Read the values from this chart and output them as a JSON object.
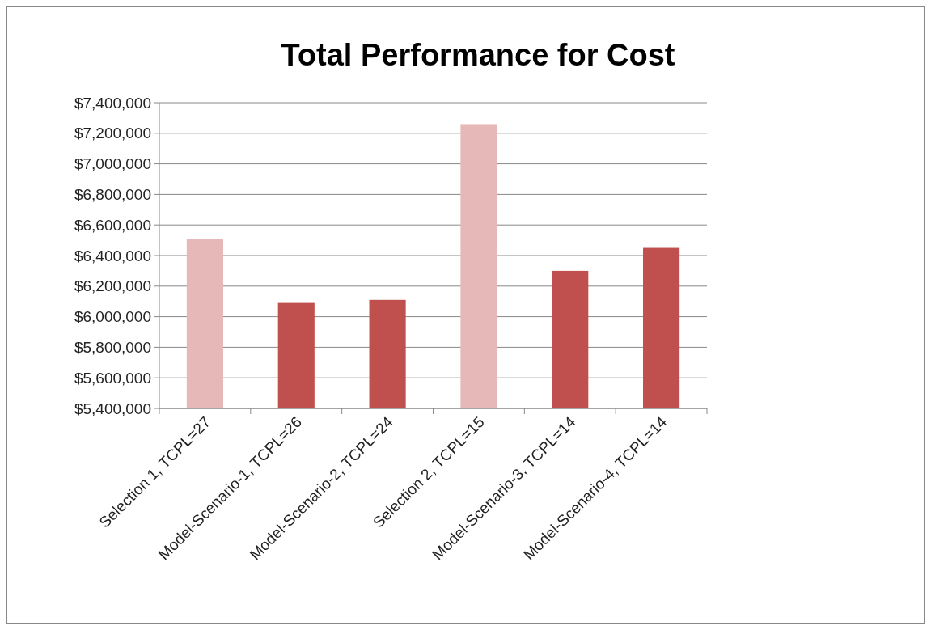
{
  "chart_data": {
    "type": "bar",
    "title": "Total Performance for Cost",
    "categories": [
      "Selection 1, TCPL=27",
      "Model-Scenario-1, TCPL=26",
      "Model-Scenario-2, TCPL=24",
      "Selection 2, TCPL=15",
      "Model-Scenario-3, TCPL=14",
      "Model-Scenario-4, TCPL=14"
    ],
    "values": [
      6510000,
      6090000,
      6110000,
      7260000,
      6300000,
      6450000
    ],
    "colors": [
      "#e6b9b8",
      "#c0504d",
      "#c0504d",
      "#e6b9b8",
      "#c0504d",
      "#c0504d"
    ],
    "ylim": [
      5400000,
      7400000
    ],
    "yticks": [
      {
        "value": 5400000,
        "label": "$5,400,000"
      },
      {
        "value": 5600000,
        "label": "$5,600,000"
      },
      {
        "value": 5800000,
        "label": "$5,800,000"
      },
      {
        "value": 6000000,
        "label": "$6,000,000"
      },
      {
        "value": 6200000,
        "label": "$6,200,000"
      },
      {
        "value": 6400000,
        "label": "$6,400,000"
      },
      {
        "value": 6600000,
        "label": "$6,600,000"
      },
      {
        "value": 6800000,
        "label": "$6,800,000"
      },
      {
        "value": 7000000,
        "label": "$7,000,000"
      },
      {
        "value": 7200000,
        "label": "$7,200,000"
      },
      {
        "value": 7400000,
        "label": "$7,400,000"
      }
    ],
    "grid": "y"
  }
}
